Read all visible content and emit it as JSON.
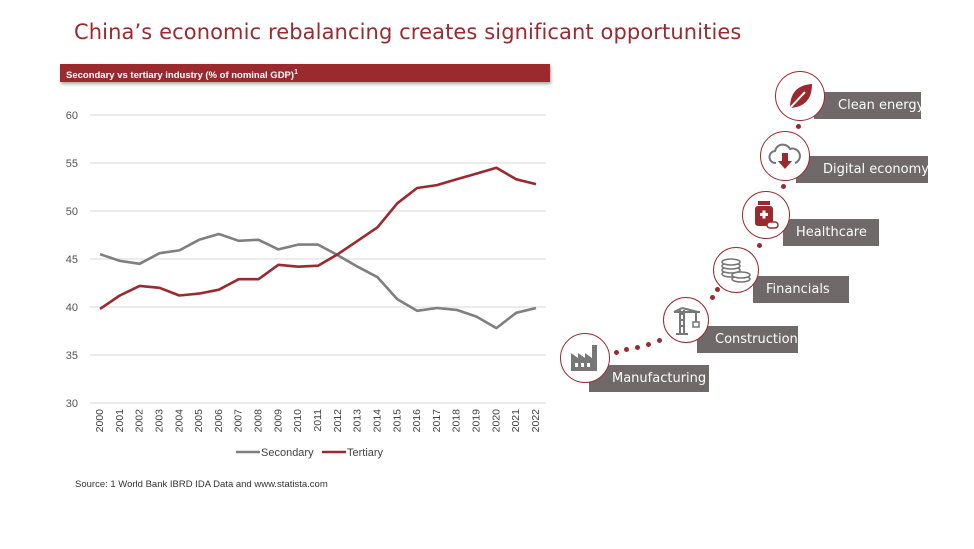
{
  "title": "China’s economic rebalancing creates significant opportunities",
  "chart_header": "Secondary vs tertiary industry (% of nominal GDP)",
  "chart_header_footnote": "1",
  "source": "Source: 1 World Bank IBRD IDA Data and www.statista.com",
  "colors": {
    "accent": "#9b2a2f",
    "secondary": "#7f7f7f",
    "label_bg": "#6f6969"
  },
  "chart_data": {
    "type": "line",
    "title": "Secondary vs tertiary industry (% of nominal GDP)",
    "xlabel": "",
    "ylabel": "",
    "ylim": [
      30,
      60
    ],
    "yticks": [
      30,
      35,
      40,
      45,
      50,
      55,
      60
    ],
    "grid": true,
    "legend": "bottom",
    "x": [
      "2000",
      "2001",
      "2002",
      "2003",
      "2004",
      "2005",
      "2006",
      "2007",
      "2008",
      "2009",
      "2010",
      "2011",
      "2012",
      "2013",
      "2014",
      "2015",
      "2016",
      "2017",
      "2018",
      "2019",
      "2020",
      "2021",
      "2022"
    ],
    "series": [
      {
        "name": "Secondary",
        "color": "#7f7f7f",
        "values": [
          45.5,
          44.8,
          44.5,
          45.6,
          45.9,
          47.0,
          47.6,
          46.9,
          47.0,
          46.0,
          46.5,
          46.5,
          45.4,
          44.2,
          43.1,
          40.8,
          39.6,
          39.9,
          39.7,
          39.0,
          37.8,
          39.4,
          39.9
        ]
      },
      {
        "name": "Tertiary",
        "color": "#9b2a2f",
        "values": [
          39.8,
          41.2,
          42.2,
          42.0,
          41.2,
          41.4,
          41.8,
          42.9,
          42.9,
          44.4,
          44.2,
          44.3,
          45.5,
          46.9,
          48.3,
          50.8,
          52.4,
          52.7,
          53.3,
          53.9,
          54.5,
          53.3,
          52.8
        ]
      }
    ]
  },
  "sectors": [
    {
      "label": "Manufacturing",
      "icon": "factory-icon"
    },
    {
      "label": "Construction",
      "icon": "crane-icon"
    },
    {
      "label": "Financials",
      "icon": "coins-icon"
    },
    {
      "label": "Healthcare",
      "icon": "medicine-icon"
    },
    {
      "label": "Digital economy",
      "icon": "cloud-download-icon"
    },
    {
      "label": "Clean energy",
      "icon": "leaf-icon"
    }
  ]
}
